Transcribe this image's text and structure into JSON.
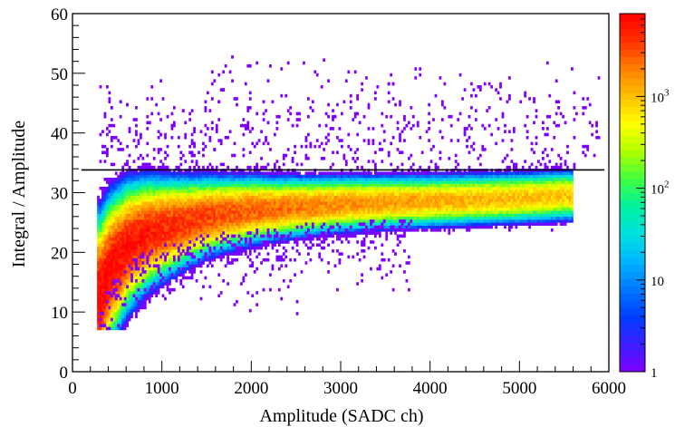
{
  "chart_data": {
    "type": "heatmap",
    "xlabel": "Amplitude (SADC ch)",
    "ylabel": "Integral / Amplitude",
    "xlim": [
      0,
      6000
    ],
    "ylim": [
      0,
      60
    ],
    "x_ticks": [
      "0",
      "1000",
      "2000",
      "3000",
      "4000",
      "5000",
      "6000"
    ],
    "y_ticks": [
      "0",
      "10",
      "20",
      "30",
      "40",
      "50",
      "60"
    ],
    "colorbar": {
      "scale": "log",
      "range": [
        1,
        8000
      ],
      "ticks": [
        {
          "value": 1,
          "label": "1"
        },
        {
          "value": 10,
          "label": "10"
        },
        {
          "value": 100,
          "base": "10",
          "exp": "2"
        },
        {
          "value": 1000,
          "base": "10",
          "exp": "3"
        }
      ],
      "palette": [
        "#7f00ff",
        "#3c1eff",
        "#003cff",
        "#0078ff",
        "#00b4ff",
        "#00e0e0",
        "#00f0a0",
        "#40ff40",
        "#b0ff00",
        "#ffff00",
        "#ffc000",
        "#ff8000",
        "#ff3000",
        "#ff0000"
      ]
    },
    "reference_line": {
      "y": 33.8,
      "x_range": [
        100,
        5950
      ]
    },
    "band_ridge": {
      "description_points_x": [
        300,
        400,
        600,
        800,
        1000,
        1500,
        2000,
        3000,
        4000,
        5000,
        5500
      ],
      "description_points_y": [
        13,
        17,
        21,
        23,
        24,
        26,
        27,
        28,
        28.5,
        29,
        29.4
      ]
    }
  }
}
